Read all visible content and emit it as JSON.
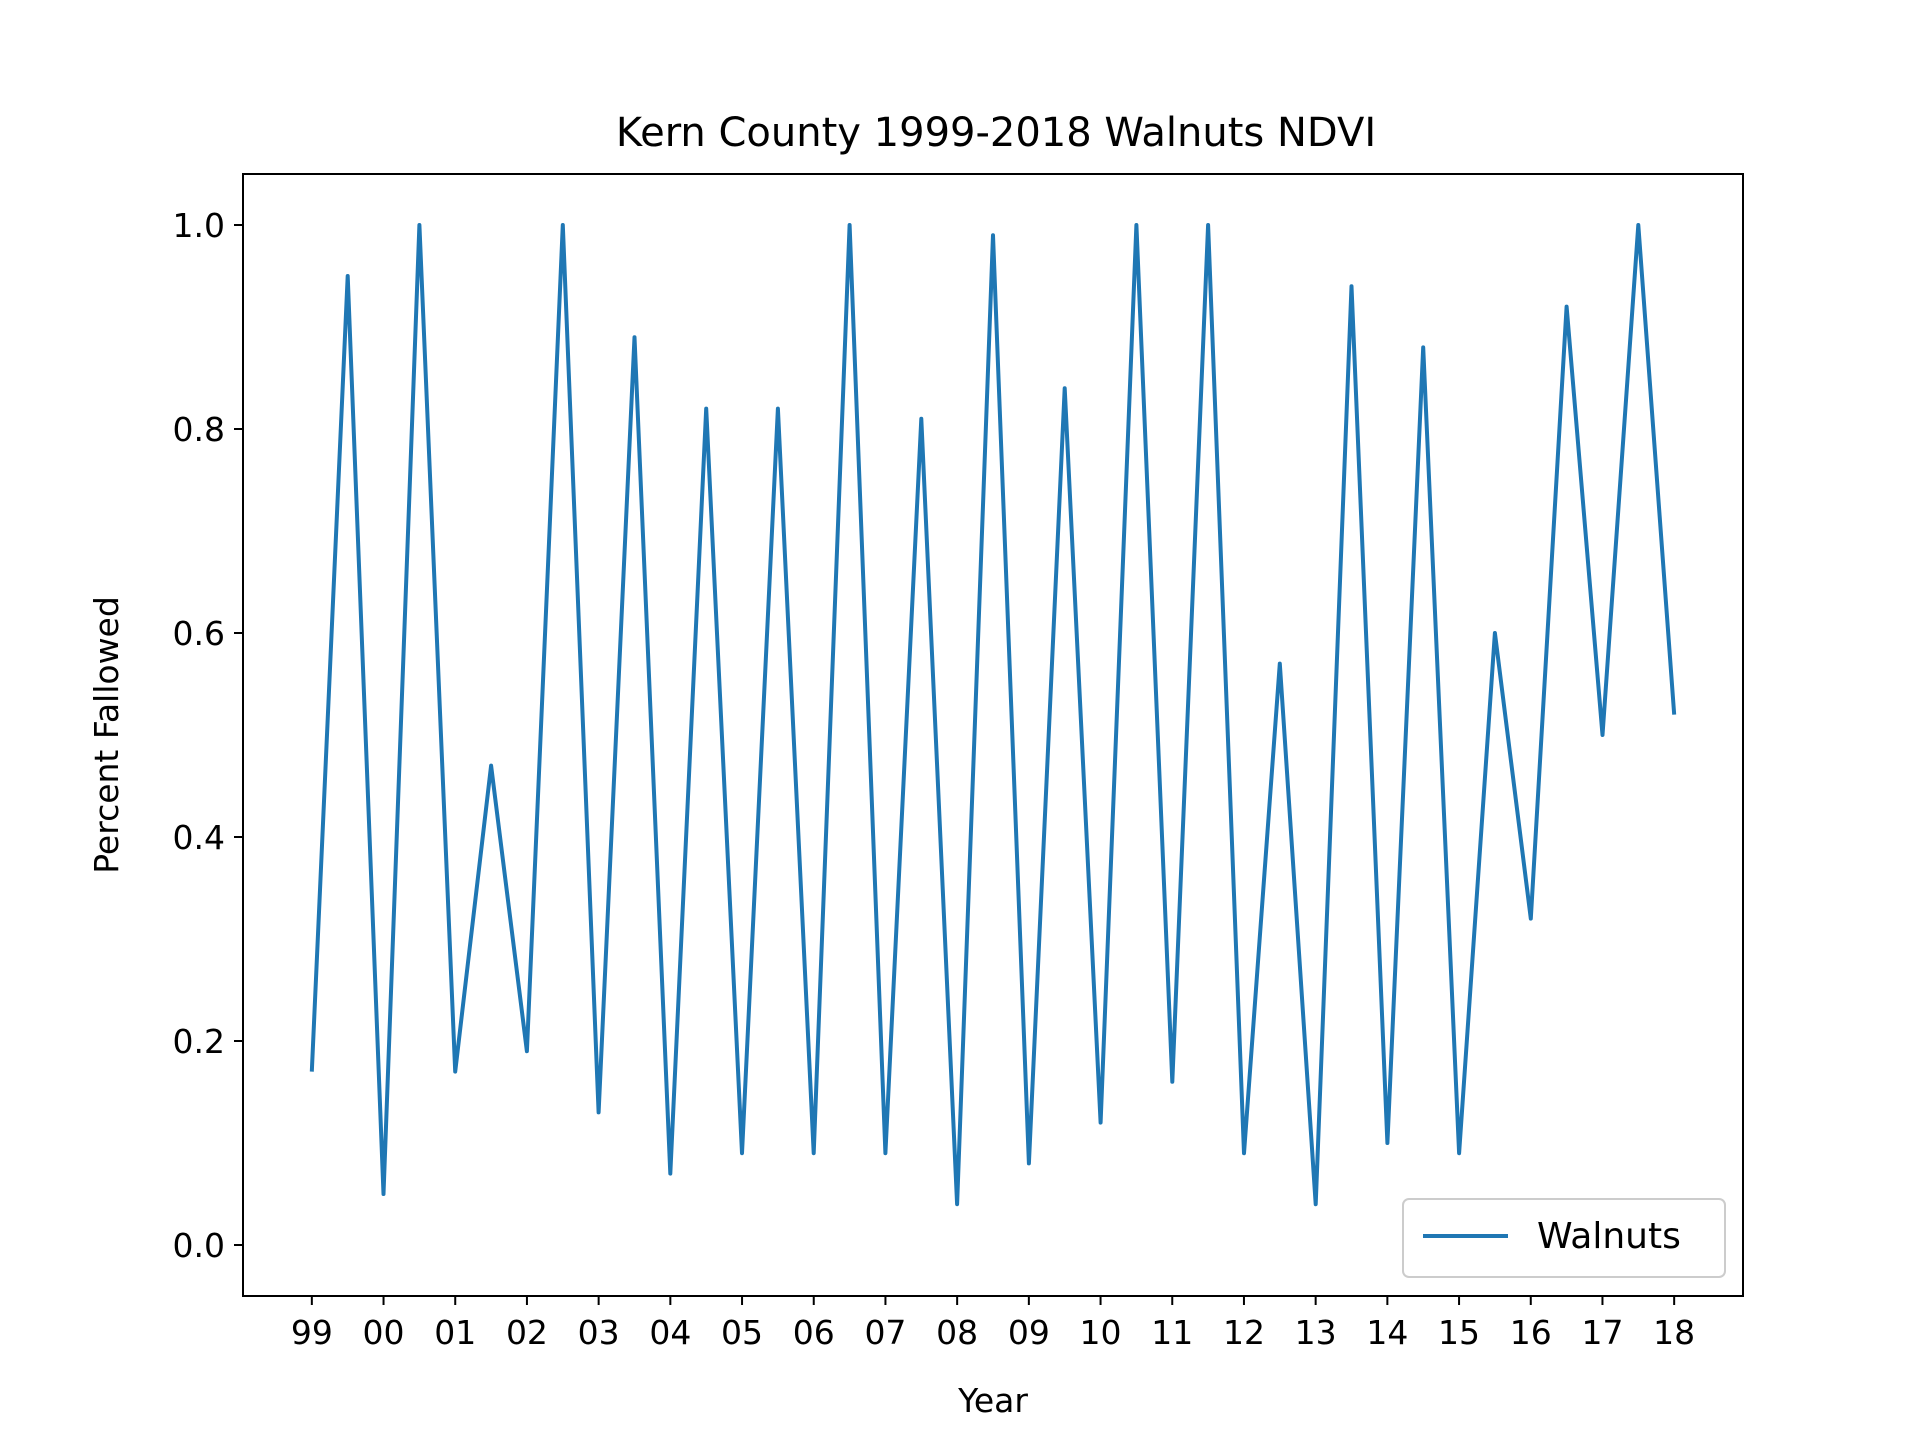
{
  "chart_data": {
    "type": "line",
    "title": "Kern County 1999-2018 Walnuts NDVI",
    "xlabel": "Year",
    "ylabel": "Percent Fallowed",
    "x_tick_labels": [
      "99",
      "00",
      "01",
      "02",
      "03",
      "04",
      "05",
      "06",
      "07",
      "08",
      "09",
      "10",
      "11",
      "12",
      "13",
      "14",
      "15",
      "16",
      "17",
      "18"
    ],
    "y_ticks": [
      0.0,
      0.2,
      0.4,
      0.6,
      0.8,
      1.0
    ],
    "y_tick_labels": [
      "0.0",
      "0.2",
      "0.4",
      "0.6",
      "0.8",
      "1.0"
    ],
    "xlim": [
      1998.04,
      2018.96
    ],
    "ylim": [
      -0.05,
      1.05
    ],
    "grid": false,
    "legend": {
      "position": "lower-right",
      "entries": [
        "Walnuts"
      ]
    },
    "series": [
      {
        "name": "Walnuts",
        "color": "#1f77b4",
        "x": [
          1999,
          1999.5,
          2000,
          2000.5,
          2001,
          2001.5,
          2002,
          2002.5,
          2003,
          2003.5,
          2004,
          2004.5,
          2005,
          2005.5,
          2006,
          2006.5,
          2007,
          2007.5,
          2008,
          2008.5,
          2009,
          2009.5,
          2010,
          2010.5,
          2011,
          2011.5,
          2012,
          2012.5,
          2013,
          2013.5,
          2014,
          2014.5,
          2015,
          2015.5,
          2016,
          2016.5,
          2017,
          2017.5,
          2018
        ],
        "values": [
          0.17,
          0.95,
          0.05,
          1.0,
          0.17,
          0.47,
          0.19,
          1.0,
          0.13,
          0.89,
          0.07,
          0.82,
          0.09,
          0.82,
          0.09,
          1.0,
          0.09,
          0.81,
          0.04,
          0.99,
          0.08,
          0.84,
          0.12,
          1.0,
          0.16,
          1.0,
          0.09,
          0.57,
          0.04,
          0.94,
          0.1,
          0.88,
          0.09,
          0.6,
          0.32,
          0.92,
          0.5,
          1.0,
          0.52
        ]
      }
    ]
  }
}
